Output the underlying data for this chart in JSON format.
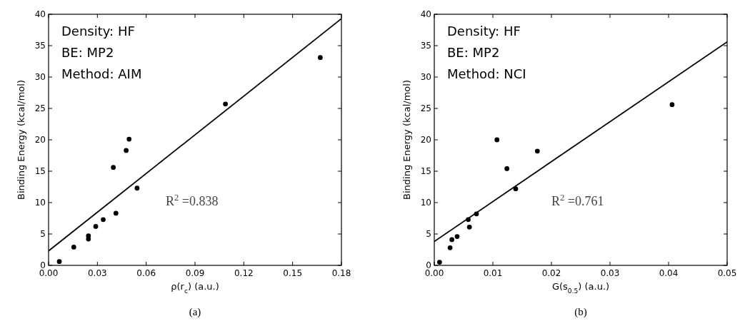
{
  "chart_data": [
    {
      "type": "scatter",
      "xlabel": "ρ(r$_{c}$) (a.u.)",
      "ylabel": "Binding Energy (kcal/mol)",
      "xlim": [
        0,
        0.18
      ],
      "xticks": [
        {
          "value": 0,
          "label": "0.00"
        },
        0.03,
        0.06,
        0.09,
        0.12,
        0.15,
        0.18
      ],
      "ylim": [
        0,
        40
      ],
      "yticks": [
        0,
        5,
        10,
        15,
        20,
        25,
        30,
        35,
        40
      ],
      "series": [
        {
          "marker": "circle",
          "color": "#000000",
          "x": [
            0.0066,
            0.0155,
            0.0245,
            0.0245,
            0.029,
            0.0336,
            0.0398,
            0.0414,
            0.0477,
            0.0495,
            0.0544,
            0.1087,
            0.167
          ],
          "values": [
            0.6,
            2.9,
            4.7,
            4.2,
            6.2,
            7.3,
            15.6,
            8.3,
            18.3,
            20.1,
            12.3,
            25.7,
            33.1
          ]
        },
        {
          "type": "line",
          "marker": "none",
          "color": "#000000",
          "x": [
            0,
            0.18
          ],
          "values": [
            2.3,
            39.3
          ]
        }
      ],
      "annotations": [
        "Density: HF",
        "BE: MP2",
        "Method: AIM",
        "R$^{2}$ =0.838",
        "(a)"
      ]
    },
    {
      "type": "scatter",
      "xlabel": "G(s$_{0.5}$) (a.u.)",
      "ylabel": "Binding Energy (kcal/mol)",
      "xlim": [
        0,
        0.05
      ],
      "xticks": [
        {
          "value": 0,
          "label": "0.00"
        },
        0.01,
        0.02,
        0.03,
        0.04,
        0.05
      ],
      "ylim": [
        0,
        40
      ],
      "yticks": [
        0,
        5,
        10,
        15,
        20,
        25,
        30,
        35,
        40
      ],
      "series": [
        {
          "marker": "circle",
          "color": "#000000",
          "x": [
            0.0009,
            0.0027,
            0.003,
            0.0039,
            0.0058,
            0.006,
            0.0072,
            0.0107,
            0.0124,
            0.0139,
            0.0176,
            0.0406
          ],
          "values": [
            0.5,
            2.8,
            4.1,
            4.6,
            7.3,
            6.1,
            8.2,
            20.0,
            15.4,
            12.2,
            18.2,
            25.6
          ]
        },
        {
          "type": "line",
          "marker": "none",
          "color": "#000000",
          "x": [
            0,
            0.05
          ],
          "values": [
            3.8,
            35.6
          ]
        }
      ],
      "annotations": [
        "Density: HF",
        "BE: MP2",
        "Method: NCI",
        "R$^{2}$ =0.761",
        "(b)"
      ]
    }
  ]
}
